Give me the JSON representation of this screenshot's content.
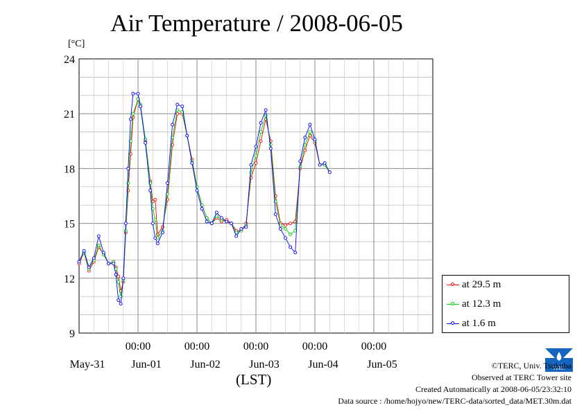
{
  "chart_data": {
    "type": "line",
    "title": "Air Temperature / 2008-06-05",
    "ylabel": "[°C]",
    "xlabel": "(LST)",
    "ylim": [
      9,
      24
    ],
    "yticks": [
      9,
      12,
      15,
      18,
      21,
      24
    ],
    "x_range_hours": [
      0,
      144
    ],
    "x_tick_labels": [
      {
        "time": "00:00",
        "date": "May-31",
        "hour": 0
      },
      {
        "time": "00:00",
        "date": "Jun-01",
        "hour": 24
      },
      {
        "time": "00:00",
        "date": "Jun-02",
        "hour": 48
      },
      {
        "time": "00:00",
        "date": "Jun-03",
        "hour": 72
      },
      {
        "time": "00:00",
        "date": "Jun-04",
        "hour": 96
      },
      {
        "time": "00:00",
        "date": "Jun-05",
        "hour": 120
      }
    ],
    "grid": true,
    "legend": "bottom-right",
    "series": [
      {
        "name": "at 29.5 m",
        "color": "#ff0000",
        "points": [
          [
            0,
            12.8
          ],
          [
            2,
            13.4
          ],
          [
            4,
            12.4
          ],
          [
            6,
            12.9
          ],
          [
            8,
            13.7
          ],
          [
            10,
            13.3
          ],
          [
            12,
            12.8
          ],
          [
            14,
            12.9
          ],
          [
            15,
            12.6
          ],
          [
            16,
            12.1
          ],
          [
            17,
            11.3
          ],
          [
            18,
            11.8
          ],
          [
            19,
            14.5
          ],
          [
            20,
            16.8
          ],
          [
            21,
            18.8
          ],
          [
            22,
            20.8
          ],
          [
            24,
            21.8
          ],
          [
            25,
            21.4
          ],
          [
            27,
            19.5
          ],
          [
            29,
            17.3
          ],
          [
            30,
            16.2
          ],
          [
            31,
            16.3
          ],
          [
            32,
            14.4
          ],
          [
            34,
            14.8
          ],
          [
            36,
            16.3
          ],
          [
            38,
            19.3
          ],
          [
            40,
            21.0
          ],
          [
            42,
            21.0
          ],
          [
            44,
            19.8
          ],
          [
            46,
            18.5
          ],
          [
            48,
            17.0
          ],
          [
            50,
            16.0
          ],
          [
            52,
            15.3
          ],
          [
            54,
            15.0
          ],
          [
            56,
            15.3
          ],
          [
            58,
            15.1
          ],
          [
            60,
            15.2
          ],
          [
            62,
            15.0
          ],
          [
            64,
            14.6
          ],
          [
            66,
            14.6
          ],
          [
            68,
            15.0
          ],
          [
            70,
            17.5
          ],
          [
            72,
            18.3
          ],
          [
            74,
            19.5
          ],
          [
            76,
            20.7
          ],
          [
            78,
            19.5
          ],
          [
            80,
            16.5
          ],
          [
            82,
            15.0
          ],
          [
            84,
            14.9
          ],
          [
            86,
            15.0
          ],
          [
            88,
            15.1
          ],
          [
            90,
            18.0
          ],
          [
            92,
            19.0
          ],
          [
            94,
            19.8
          ],
          [
            96,
            19.4
          ],
          [
            98,
            18.2
          ],
          [
            100,
            18.2
          ],
          [
            102,
            17.8
          ]
        ]
      },
      {
        "name": "at 12.3 m",
        "color": "#00cc00",
        "points": [
          [
            0,
            12.9
          ],
          [
            2,
            13.4
          ],
          [
            4,
            12.5
          ],
          [
            6,
            13.0
          ],
          [
            8,
            13.8
          ],
          [
            10,
            13.3
          ],
          [
            12,
            12.8
          ],
          [
            14,
            12.9
          ],
          [
            15,
            12.5
          ],
          [
            16,
            11.8
          ],
          [
            17,
            11.0
          ],
          [
            18,
            11.9
          ],
          [
            19,
            14.6
          ],
          [
            20,
            17.2
          ],
          [
            21,
            19.5
          ],
          [
            22,
            21.0
          ],
          [
            24,
            21.8
          ],
          [
            25,
            21.5
          ],
          [
            27,
            19.6
          ],
          [
            29,
            17.2
          ],
          [
            30,
            15.8
          ],
          [
            31,
            15.2
          ],
          [
            32,
            14.2
          ],
          [
            34,
            14.6
          ],
          [
            36,
            16.6
          ],
          [
            38,
            19.7
          ],
          [
            40,
            21.2
          ],
          [
            42,
            21.1
          ],
          [
            44,
            19.8
          ],
          [
            46,
            18.4
          ],
          [
            48,
            17.0
          ],
          [
            50,
            16.0
          ],
          [
            52,
            15.3
          ],
          [
            54,
            15.0
          ],
          [
            56,
            15.4
          ],
          [
            58,
            15.2
          ],
          [
            60,
            15.1
          ],
          [
            62,
            15.0
          ],
          [
            64,
            14.5
          ],
          [
            66,
            14.6
          ],
          [
            68,
            14.9
          ],
          [
            70,
            17.8
          ],
          [
            72,
            18.7
          ],
          [
            74,
            20.0
          ],
          [
            76,
            20.9
          ],
          [
            78,
            19.3
          ],
          [
            80,
            16.2
          ],
          [
            82,
            14.9
          ],
          [
            84,
            14.7
          ],
          [
            86,
            14.4
          ],
          [
            88,
            14.6
          ],
          [
            90,
            18.1
          ],
          [
            92,
            19.3
          ],
          [
            94,
            20.0
          ],
          [
            96,
            19.5
          ],
          [
            98,
            18.2
          ],
          [
            100,
            18.2
          ],
          [
            102,
            17.8
          ]
        ]
      },
      {
        "name": "at 1.6 m",
        "color": "#0000ff",
        "points": [
          [
            0,
            12.9
          ],
          [
            2,
            13.5
          ],
          [
            4,
            12.6
          ],
          [
            6,
            13.1
          ],
          [
            8,
            14.3
          ],
          [
            10,
            13.4
          ],
          [
            12,
            12.8
          ],
          [
            14,
            12.8
          ],
          [
            15,
            12.2
          ],
          [
            16,
            10.8
          ],
          [
            17,
            10.6
          ],
          [
            18,
            12.0
          ],
          [
            19,
            15.0
          ],
          [
            20,
            18.0
          ],
          [
            21,
            20.7
          ],
          [
            22,
            22.1
          ],
          [
            24,
            22.1
          ],
          [
            25,
            21.4
          ],
          [
            27,
            19.4
          ],
          [
            29,
            16.8
          ],
          [
            30,
            15.0
          ],
          [
            31,
            14.2
          ],
          [
            32,
            13.9
          ],
          [
            34,
            14.5
          ],
          [
            36,
            17.2
          ],
          [
            38,
            20.4
          ],
          [
            40,
            21.5
          ],
          [
            42,
            21.4
          ],
          [
            44,
            19.8
          ],
          [
            46,
            18.3
          ],
          [
            48,
            16.8
          ],
          [
            50,
            15.8
          ],
          [
            52,
            15.1
          ],
          [
            54,
            15.0
          ],
          [
            56,
            15.6
          ],
          [
            58,
            15.3
          ],
          [
            60,
            15.1
          ],
          [
            62,
            15.0
          ],
          [
            64,
            14.3
          ],
          [
            66,
            14.7
          ],
          [
            68,
            14.8
          ],
          [
            70,
            18.2
          ],
          [
            72,
            19.2
          ],
          [
            74,
            20.5
          ],
          [
            76,
            21.2
          ],
          [
            78,
            19.1
          ],
          [
            80,
            15.5
          ],
          [
            82,
            14.7
          ],
          [
            84,
            14.2
          ],
          [
            86,
            13.7
          ],
          [
            88,
            13.4
          ],
          [
            90,
            18.4
          ],
          [
            92,
            19.7
          ],
          [
            94,
            20.4
          ],
          [
            96,
            19.6
          ],
          [
            98,
            18.2
          ],
          [
            100,
            18.3
          ],
          [
            102,
            17.8
          ]
        ]
      }
    ]
  },
  "credits": {
    "copyright": "©TERC, Univ. Tsukuba",
    "observed": "Observed at TERC Tower site",
    "created": "Created Automatically at 2008-06-05/23:32:10",
    "source": "Data source : /home/hojyo/new/TERC-data/sorted_data/MET.30m.dat"
  },
  "logo": {
    "text": "TERC",
    "color": "#1565c0"
  }
}
